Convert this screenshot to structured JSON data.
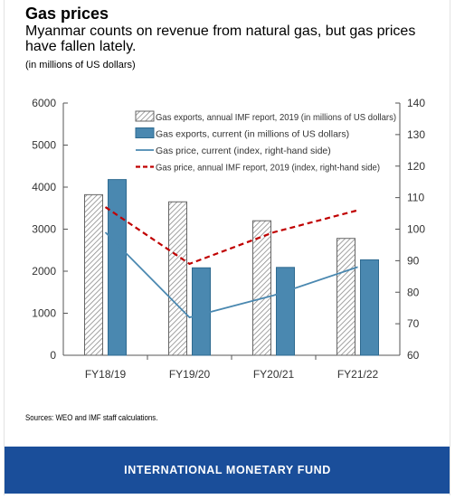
{
  "header": {
    "title": "Gas prices",
    "subtitle": "Myanmar counts on revenue from natural gas, but gas prices have fallen lately.",
    "units": "(in millions of US dollars)"
  },
  "source": "Sources: WEO and IMF staff calculations.",
  "footer": {
    "label": "INTERNATIONAL MONETARY FUND",
    "color": "#1a4e9a"
  },
  "chart_data": {
    "type": "bar",
    "categories": [
      "FY18/19",
      "FY19/20",
      "FY20/21",
      "FY21/22"
    ],
    "y_left": {
      "ticks": [
        0,
        1000,
        2000,
        3000,
        4000,
        5000,
        6000
      ],
      "lim": [
        0,
        6000
      ]
    },
    "y_right": {
      "ticks": [
        60,
        70,
        80,
        90,
        100,
        110,
        120,
        130,
        140
      ],
      "lim": [
        60,
        140
      ]
    },
    "grid": false,
    "legend_position": "top-right",
    "bars": [
      {
        "name": "Gas exports, annual IMF report, 2019 (in millions of US dollars)",
        "axis": "left",
        "style": "hatched",
        "color": "#888888",
        "values": [
          3820,
          3650,
          3200,
          2780
        ]
      },
      {
        "name": "Gas exports, current (in millions of US dollars)",
        "axis": "left",
        "style": "solid",
        "color": "#4a88b0",
        "values": [
          4180,
          2080,
          2090,
          2270
        ]
      }
    ],
    "lines": [
      {
        "name": "Gas price, current (index, right-hand side)",
        "axis": "right",
        "style": "solid",
        "color": "#4a88b0",
        "values": [
          99,
          72,
          79,
          88
        ]
      },
      {
        "name": "Gas price, annual IMF report, 2019 (index, right-hand side)",
        "axis": "right",
        "style": "dashed",
        "color": "#c00000",
        "values": [
          107,
          89,
          99,
          106
        ]
      }
    ]
  }
}
